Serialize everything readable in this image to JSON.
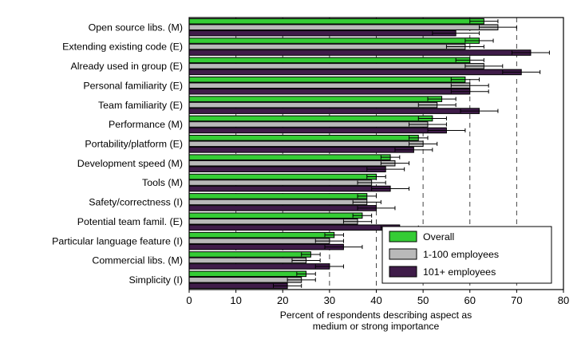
{
  "figure": {
    "xlabel_line1": "Percent of respondents describing aspect as",
    "xlabel_line2": "medium or strong importance"
  },
  "chart_data": {
    "type": "bar",
    "orientation": "horizontal",
    "title": "",
    "xlabel": "Percent of respondents describing aspect as medium or strong importance",
    "ylabel": "",
    "xlim": [
      0,
      80
    ],
    "xticks": [
      0,
      10,
      20,
      30,
      40,
      50,
      60,
      70,
      80
    ],
    "grid": "vertical dashed lines at 10-70",
    "legend_position": "lower right",
    "categories": [
      "Open source libs. (M)",
      "Extending existing code (E)",
      "Already used in group (E)",
      "Personal familiarity (E)",
      "Team familiarity (E)",
      "Performance (M)",
      "Portability/platform (E)",
      "Development speed (M)",
      "Tools (M)",
      "Safety/correctness (I)",
      "Potential team famil. (E)",
      "Particular language feature (I)",
      "Commercial libs. (M)",
      "Simplicity (I)"
    ],
    "series": [
      {
        "name": "Overall",
        "color": "#35cc35",
        "values": [
          63,
          62,
          60,
          59,
          54,
          52,
          49,
          43,
          40,
          38,
          37,
          31,
          26,
          25
        ],
        "errors": [
          3,
          3,
          3,
          3,
          3,
          3,
          2,
          2,
          2,
          2,
          2,
          2,
          2,
          2
        ]
      },
      {
        "name": "1-100 employees",
        "color": "#b9b9b9",
        "values": [
          66,
          59,
          63,
          60,
          53,
          51,
          50,
          44,
          39,
          38,
          36,
          30,
          25,
          24
        ],
        "errors": [
          4,
          4,
          4,
          4,
          4,
          4,
          3,
          3,
          3,
          3,
          3,
          3,
          3,
          3
        ]
      },
      {
        "name": "101+ employees",
        "color": "#3f1c49",
        "values": [
          57,
          73,
          71,
          60,
          62,
          55,
          48,
          42,
          43,
          40,
          45,
          33,
          30,
          21
        ],
        "errors": [
          5,
          4,
          4,
          4,
          4,
          4,
          4,
          4,
          4,
          4,
          4,
          4,
          3,
          3
        ]
      }
    ]
  }
}
